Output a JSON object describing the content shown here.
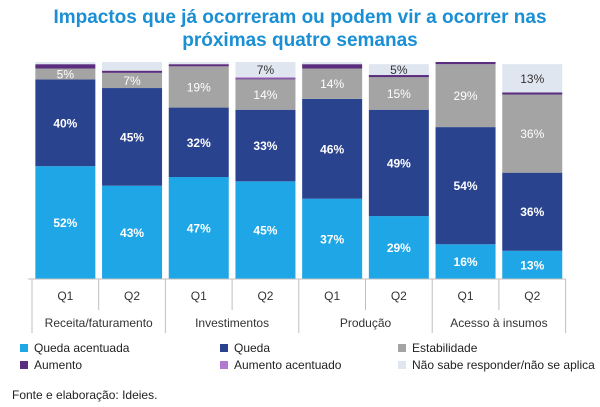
{
  "title": {
    "line1": "Impactos que já ocorreram ou podem vir a ocorrer nas",
    "line2": "próximas quatro semanas"
  },
  "source": "Fonte e elaboração: Ideies.",
  "colors": {
    "queda_acentuada": "#1fa6e6",
    "queda": "#29438f",
    "estabilidade": "#a4a4a4",
    "aumento": "#5b2d7e",
    "aumento_acentuado": "#b07ad0",
    "nao_sabe": "#dfe6f0"
  },
  "chart_data": {
    "type": "bar",
    "stacked": true,
    "ylim": [
      0,
      100
    ],
    "groups": [
      "Receita/faturamento",
      "Investimentos",
      "Produção",
      "Acesso à insumos"
    ],
    "categories": [
      "Q1",
      "Q2",
      "Q1",
      "Q2",
      "Q1",
      "Q2",
      "Q1",
      "Q2"
    ],
    "series": [
      {
        "name": "Queda acentuada",
        "key": "queda_acentuada",
        "values": [
          52,
          43,
          47,
          45,
          37,
          29,
          16,
          13
        ],
        "labels": [
          "52%",
          "43%",
          "47%",
          "45%",
          "37%",
          "29%",
          "16%",
          "13%"
        ]
      },
      {
        "name": "Queda",
        "key": "queda",
        "values": [
          40,
          45,
          32,
          33,
          46,
          49,
          54,
          36
        ],
        "labels": [
          "40%",
          "45%",
          "32%",
          "33%",
          "46%",
          "49%",
          "54%",
          "36%"
        ]
      },
      {
        "name": "Estabilidade",
        "key": "estabilidade",
        "values": [
          5,
          7,
          19,
          14,
          14,
          15,
          29,
          36
        ],
        "labels": [
          "5%",
          "7%",
          "19%",
          "14%",
          "14%",
          "15%",
          "29%",
          "36%"
        ]
      },
      {
        "name": "Aumento",
        "key": "aumento",
        "values": [
          2,
          1,
          1,
          0.5,
          2,
          1,
          1,
          1
        ],
        "labels": [
          "",
          "",
          "",
          "",
          "",
          "",
          "",
          ""
        ]
      },
      {
        "name": "Aumento acentuado",
        "key": "aumento_acentuado",
        "values": [
          0,
          0,
          0,
          0.5,
          0,
          0,
          0,
          0
        ],
        "labels": [
          "",
          "",
          "",
          "",
          "",
          "",
          "",
          ""
        ]
      },
      {
        "name": "Não sabe responder/não se aplica",
        "key": "nao_sabe",
        "values": [
          1,
          4,
          1,
          7,
          1,
          5,
          0,
          13
        ],
        "labels": [
          "",
          "",
          "",
          "7%",
          "",
          "5%",
          "",
          "13%"
        ]
      }
    ],
    "legend": [
      {
        "label": "Queda acentuada",
        "key": "queda_acentuada"
      },
      {
        "label": "Queda",
        "key": "queda"
      },
      {
        "label": "Estabilidade",
        "key": "estabilidade"
      },
      {
        "label": "Aumento",
        "key": "aumento"
      },
      {
        "label": "Aumento acentuado",
        "key": "aumento_acentuado"
      },
      {
        "label": "Não sabe responder/não se aplica",
        "key": "nao_sabe"
      }
    ]
  }
}
